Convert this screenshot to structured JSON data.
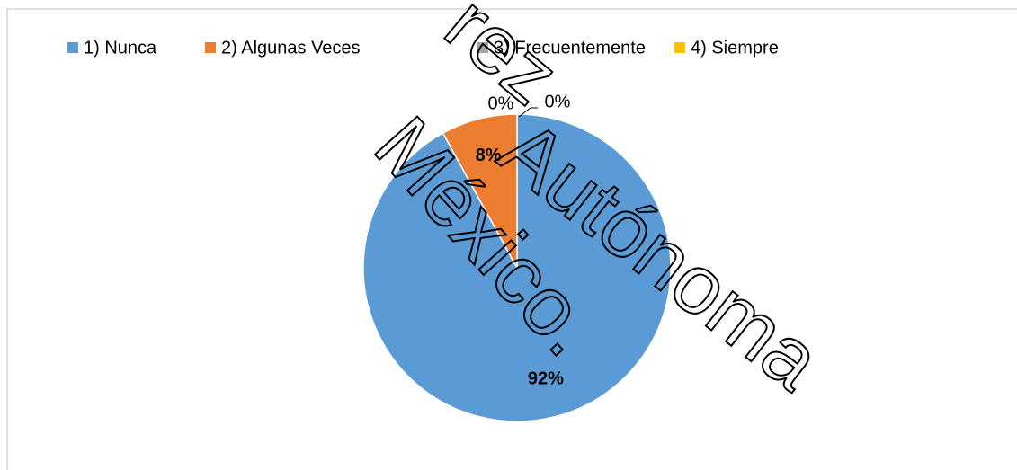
{
  "chart_data": {
    "type": "pie",
    "categories": [
      "1) Nunca",
      "2) Algunas Veces",
      "3) Frecuentemente",
      "4) Siempre"
    ],
    "values": [
      92,
      8,
      0,
      0
    ],
    "value_labels": [
      "92%",
      "8%",
      "0%",
      "0%"
    ],
    "colors": [
      "#5b9bd5",
      "#ed7d31",
      "#a5a5a5",
      "#ffc000"
    ],
    "legend": "top",
    "annotations": [
      "rez",
      "Autónoma",
      "México."
    ]
  }
}
